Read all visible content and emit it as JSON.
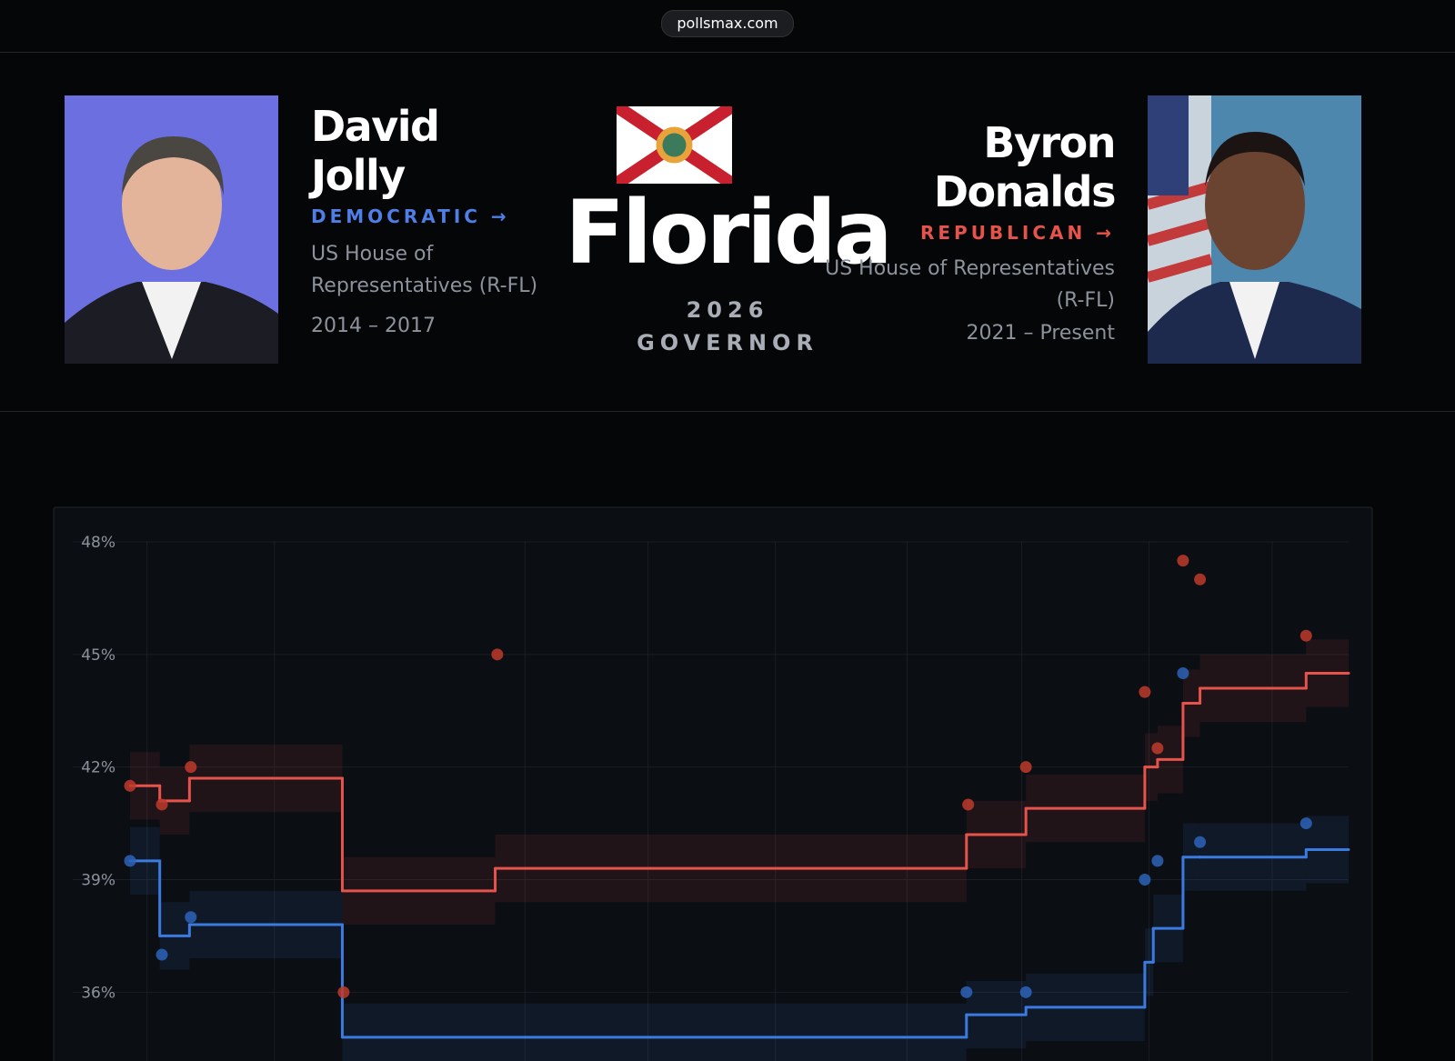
{
  "url": "pollsmax.com",
  "candidates": [
    {
      "name": "David Jolly",
      "party": "DEMOCRATIC",
      "role": "US House of Representatives (R-FL)",
      "years": "2014 – 2017"
    },
    {
      "name": "Byron Donalds",
      "party": "REPUBLICAN",
      "role": "US House of Representatives (R-FL)",
      "years": "2021 – Present"
    }
  ],
  "race": {
    "state": "Florida",
    "year": "2026",
    "office": "GOVERNOR"
  },
  "chart_data": {
    "type": "step",
    "ylim": [
      34.7,
      48
    ],
    "yticks": [
      {
        "value": 48,
        "label": "48%"
      },
      {
        "value": 45,
        "label": "45%"
      },
      {
        "value": 42,
        "label": "42%"
      },
      {
        "value": 39,
        "label": "39%"
      },
      {
        "value": 36,
        "label": "36%"
      }
    ],
    "xlim": [
      0,
      287
    ],
    "xticks": [
      4,
      34,
      93,
      122,
      152,
      183,
      210,
      240,
      269
    ],
    "grid": true,
    "series": [
      {
        "color": "#e5534b",
        "band": 0.9,
        "x": [
          0,
          7,
          14,
          50,
          86,
          197,
          211,
          239,
          242,
          248,
          252,
          277
        ],
        "values": [
          41.5,
          41.1,
          41.7,
          38.7,
          39.3,
          40.2,
          40.9,
          42.0,
          42.2,
          43.7,
          44.1,
          44.5
        ]
      },
      {
        "color": "#3b7be0",
        "band": 0.9,
        "x": [
          0,
          7,
          14,
          50,
          197,
          211,
          239,
          241,
          248,
          252,
          277
        ],
        "values": [
          39.5,
          37.5,
          37.8,
          34.8,
          35.4,
          35.6,
          36.8,
          37.7,
          39.6,
          39.6,
          39.8
        ]
      }
    ],
    "points": [
      {
        "color": "#c0392b",
        "x": [
          0,
          7.5,
          14.3,
          86.5,
          50.3,
          197.4,
          211,
          239,
          242,
          248,
          252,
          277
        ],
        "values": [
          41.5,
          41.0,
          42.0,
          45.0,
          36.0,
          41.0,
          42.0,
          44.0,
          42.5,
          47.5,
          47.0,
          45.5
        ]
      },
      {
        "color": "#2d63b8",
        "x": [
          0,
          7.5,
          14.3,
          197,
          211,
          239,
          242,
          248,
          252,
          277
        ],
        "values": [
          39.5,
          37.0,
          38.0,
          36.0,
          36.0,
          39.0,
          39.5,
          44.5,
          40.0,
          40.5
        ]
      }
    ]
  }
}
